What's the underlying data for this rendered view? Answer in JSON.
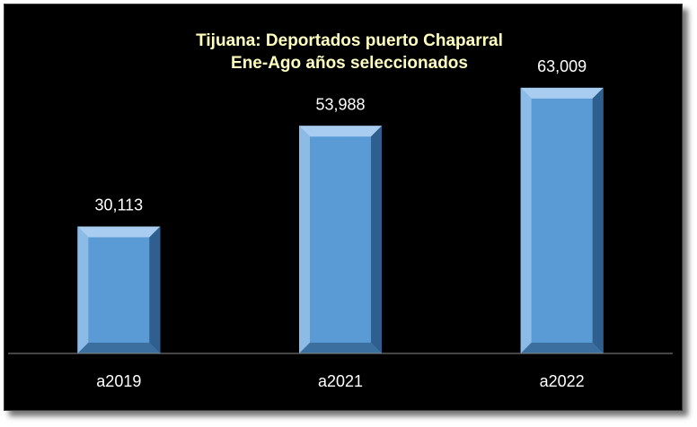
{
  "chart_data": {
    "type": "bar",
    "title": "Tijuana: Deportados puerto Chaparral",
    "subtitle": "Ene-Ago años seleccionados",
    "categories": [
      "a2019",
      "a2021",
      "a2022"
    ],
    "values": [
      30113,
      53988,
      63009
    ],
    "value_labels": [
      "30,113",
      "53,988",
      "63,009"
    ],
    "xlabel": "",
    "ylabel": "",
    "ylim": [
      0,
      70000
    ],
    "grid": false,
    "legend": "none",
    "colors": {
      "background": "#000000",
      "bar_face": "#5b9bd5",
      "bar_light": "#a9cdf0",
      "bar_dark": "#2e5f8e",
      "title": "#ffffbf",
      "text": "#ffffff",
      "axis": "#8a8a8a"
    }
  }
}
